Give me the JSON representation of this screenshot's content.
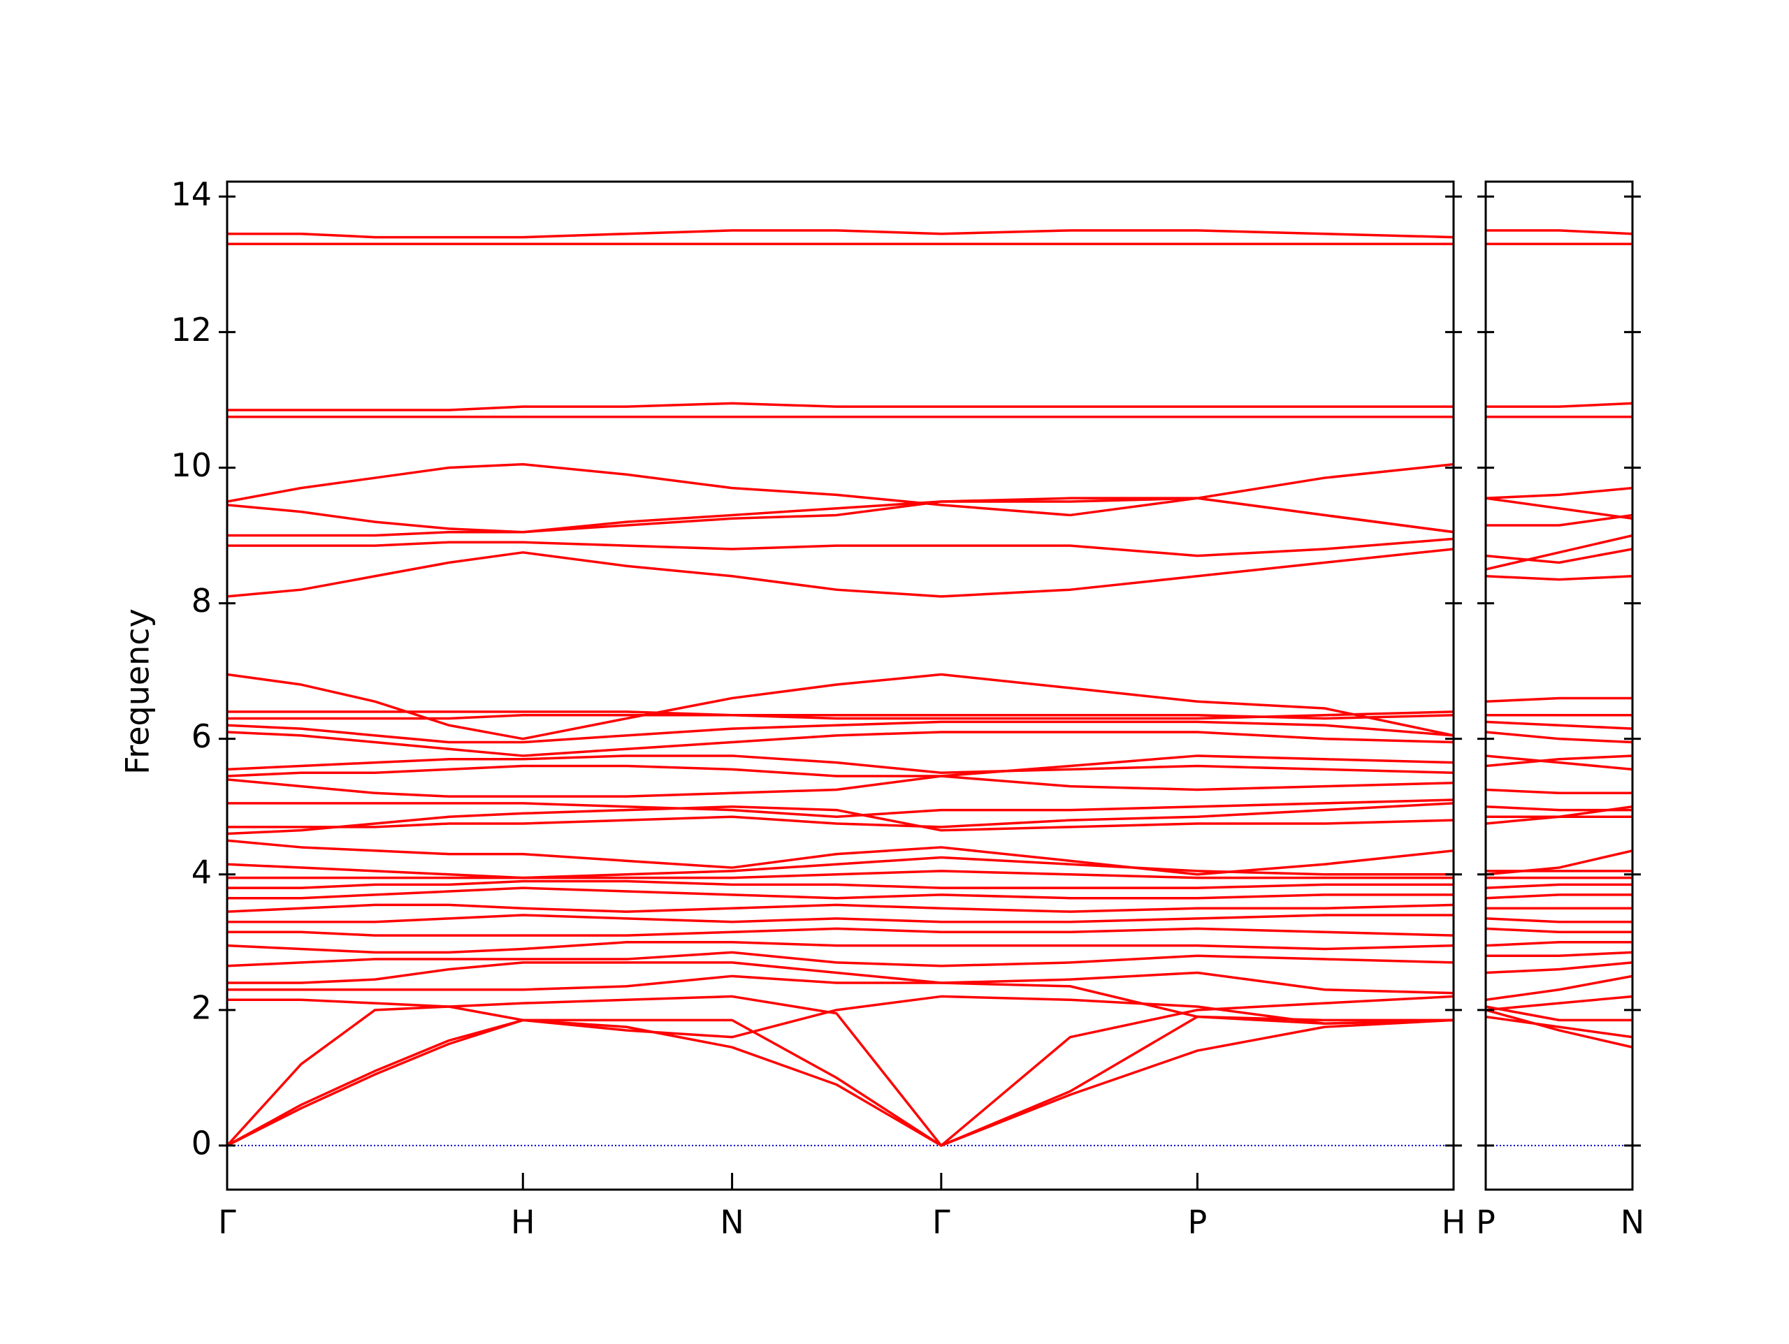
{
  "chart_data": [
    {
      "type": "line",
      "ylabel": "Frequency",
      "color": "#ff0000",
      "x": [
        0,
        0.25,
        0.5,
        0.75,
        1.0,
        1.35,
        1.707,
        2.06,
        2.414,
        2.85,
        3.28,
        3.71,
        4.146
      ],
      "xlim": [
        0,
        4.146
      ],
      "xticks": [
        {
          "value": 0,
          "label": "Γ"
        },
        {
          "value": 1.0,
          "label": "H"
        },
        {
          "value": 1.707,
          "label": "N"
        },
        {
          "value": 2.414,
          "label": "Γ"
        },
        {
          "value": 3.28,
          "label": "P"
        },
        {
          "value": 4.146,
          "label": "H"
        }
      ],
      "ylim": [
        -0.65,
        14.22
      ],
      "yticks": [
        0,
        2,
        4,
        6,
        8,
        10,
        12,
        14
      ],
      "hline": 0,
      "hline_color": "#0000cc",
      "series": [
        {
          "values": [
            0,
            1.2,
            2.0,
            2.05,
            2.1,
            2.15,
            2.2,
            1.95,
            0,
            1.6,
            2.0,
            2.1,
            2.2
          ]
        },
        {
          "values": [
            0,
            0.55,
            1.05,
            1.5,
            1.85,
            1.75,
            1.45,
            0.9,
            0,
            0.75,
            1.4,
            1.75,
            1.85
          ]
        },
        {
          "values": [
            0,
            0.6,
            1.1,
            1.55,
            1.85,
            1.85,
            1.85,
            1.0,
            0,
            0.8,
            1.9,
            1.8,
            1.85
          ]
        },
        {
          "values": [
            2.15,
            2.15,
            2.1,
            2.05,
            1.85,
            1.7,
            1.6,
            2.0,
            2.2,
            2.15,
            2.05,
            1.8,
            1.85
          ]
        },
        {
          "values": [
            2.3,
            2.3,
            2.3,
            2.3,
            2.3,
            2.35,
            2.5,
            2.4,
            2.4,
            2.35,
            1.9,
            1.85,
            1.85
          ]
        },
        {
          "values": [
            2.4,
            2.4,
            2.45,
            2.6,
            2.7,
            2.7,
            2.7,
            2.55,
            2.4,
            2.45,
            2.55,
            2.3,
            2.25
          ]
        },
        {
          "values": [
            2.65,
            2.7,
            2.75,
            2.75,
            2.75,
            2.75,
            2.85,
            2.7,
            2.65,
            2.7,
            2.8,
            2.75,
            2.7
          ]
        },
        {
          "values": [
            2.95,
            2.9,
            2.85,
            2.85,
            2.9,
            3.0,
            3.0,
            2.95,
            2.95,
            2.95,
            2.95,
            2.9,
            2.95
          ]
        },
        {
          "values": [
            3.15,
            3.15,
            3.1,
            3.1,
            3.1,
            3.1,
            3.15,
            3.2,
            3.15,
            3.15,
            3.2,
            3.15,
            3.1
          ]
        },
        {
          "values": [
            3.3,
            3.3,
            3.3,
            3.35,
            3.4,
            3.35,
            3.3,
            3.35,
            3.3,
            3.3,
            3.35,
            3.4,
            3.4
          ]
        },
        {
          "values": [
            3.45,
            3.5,
            3.55,
            3.55,
            3.5,
            3.45,
            3.5,
            3.55,
            3.5,
            3.45,
            3.5,
            3.5,
            3.55
          ]
        },
        {
          "values": [
            3.65,
            3.65,
            3.7,
            3.75,
            3.8,
            3.75,
            3.7,
            3.65,
            3.7,
            3.65,
            3.65,
            3.7,
            3.7
          ]
        },
        {
          "values": [
            3.8,
            3.8,
            3.85,
            3.85,
            3.9,
            3.9,
            3.85,
            3.85,
            3.8,
            3.8,
            3.8,
            3.85,
            3.85
          ]
        },
        {
          "values": [
            3.95,
            3.95,
            3.95,
            3.95,
            3.95,
            3.95,
            3.95,
            4.0,
            4.05,
            4.0,
            3.95,
            3.95,
            3.95
          ]
        },
        {
          "values": [
            4.15,
            4.1,
            4.05,
            4.0,
            3.95,
            4.0,
            4.05,
            4.15,
            4.25,
            4.15,
            4.05,
            4.0,
            4.0
          ]
        },
        {
          "values": [
            4.5,
            4.4,
            4.35,
            4.3,
            4.3,
            4.2,
            4.1,
            4.3,
            4.4,
            4.2,
            4.0,
            4.15,
            4.35
          ]
        },
        {
          "values": [
            4.6,
            4.65,
            4.75,
            4.85,
            4.9,
            4.95,
            5.0,
            4.95,
            4.65,
            4.7,
            4.75,
            4.75,
            4.8
          ]
        },
        {
          "values": [
            4.7,
            4.7,
            4.7,
            4.75,
            4.75,
            4.8,
            4.85,
            4.75,
            4.7,
            4.8,
            4.85,
            4.95,
            5.05
          ]
        },
        {
          "values": [
            5.05,
            5.05,
            5.05,
            5.05,
            5.05,
            5.0,
            4.95,
            4.85,
            4.95,
            4.95,
            5.0,
            5.05,
            5.1
          ]
        },
        {
          "values": [
            5.4,
            5.3,
            5.2,
            5.15,
            5.15,
            5.15,
            5.2,
            5.25,
            5.45,
            5.3,
            5.25,
            5.3,
            5.35
          ]
        },
        {
          "values": [
            5.45,
            5.5,
            5.5,
            5.55,
            5.6,
            5.6,
            5.55,
            5.45,
            5.45,
            5.6,
            5.75,
            5.7,
            5.65
          ]
        },
        {
          "values": [
            5.55,
            5.6,
            5.65,
            5.7,
            5.7,
            5.75,
            5.75,
            5.65,
            5.5,
            5.55,
            5.6,
            5.55,
            5.5
          ]
        },
        {
          "values": [
            6.1,
            6.05,
            5.95,
            5.85,
            5.75,
            5.85,
            5.95,
            6.05,
            6.1,
            6.1,
            6.1,
            6.0,
            5.95
          ]
        },
        {
          "values": [
            6.2,
            6.15,
            6.05,
            5.95,
            5.95,
            6.05,
            6.15,
            6.2,
            6.25,
            6.25,
            6.25,
            6.2,
            6.05
          ]
        },
        {
          "values": [
            6.3,
            6.3,
            6.3,
            6.3,
            6.35,
            6.35,
            6.35,
            6.35,
            6.35,
            6.35,
            6.35,
            6.3,
            6.35
          ]
        },
        {
          "values": [
            6.4,
            6.4,
            6.4,
            6.4,
            6.4,
            6.4,
            6.35,
            6.3,
            6.3,
            6.3,
            6.3,
            6.35,
            6.4
          ]
        },
        {
          "values": [
            6.95,
            6.8,
            6.55,
            6.2,
            6.0,
            6.3,
            6.6,
            6.8,
            6.95,
            6.75,
            6.55,
            6.45,
            6.05
          ]
        },
        {
          "values": [
            8.1,
            8.2,
            8.4,
            8.6,
            8.75,
            8.55,
            8.4,
            8.2,
            8.1,
            8.2,
            8.4,
            8.6,
            8.8
          ]
        },
        {
          "values": [
            8.85,
            8.85,
            8.85,
            8.9,
            8.9,
            8.85,
            8.8,
            8.85,
            8.85,
            8.85,
            8.7,
            8.8,
            8.95
          ]
        },
        {
          "values": [
            9.0,
            9.0,
            9.0,
            9.05,
            9.05,
            9.15,
            9.25,
            9.3,
            9.5,
            9.5,
            9.55,
            9.3,
            9.05
          ]
        },
        {
          "values": [
            9.45,
            9.35,
            9.2,
            9.1,
            9.05,
            9.2,
            9.3,
            9.4,
            9.5,
            9.55,
            9.55,
            9.3,
            9.05
          ]
        },
        {
          "values": [
            9.5,
            9.7,
            9.85,
            10.0,
            10.05,
            9.9,
            9.7,
            9.6,
            9.45,
            9.3,
            9.55,
            9.85,
            10.05
          ]
        },
        {
          "values": [
            10.75,
            10.75,
            10.75,
            10.75,
            10.75,
            10.75,
            10.75,
            10.75,
            10.75,
            10.75,
            10.75,
            10.75,
            10.75
          ]
        },
        {
          "values": [
            10.85,
            10.85,
            10.85,
            10.85,
            10.9,
            10.9,
            10.95,
            10.9,
            10.9,
            10.9,
            10.9,
            10.9,
            10.9
          ]
        },
        {
          "values": [
            13.3,
            13.3,
            13.3,
            13.3,
            13.3,
            13.3,
            13.3,
            13.3,
            13.3,
            13.3,
            13.3,
            13.3,
            13.3
          ]
        },
        {
          "values": [
            13.45,
            13.45,
            13.4,
            13.4,
            13.4,
            13.45,
            13.5,
            13.5,
            13.45,
            13.5,
            13.5,
            13.45,
            13.4
          ]
        }
      ]
    },
    {
      "type": "line",
      "color": "#ff0000",
      "x": [
        0,
        0.25,
        0.5
      ],
      "xlim": [
        0,
        0.5
      ],
      "xticks": [
        {
          "value": 0,
          "label": "P"
        },
        {
          "value": 0.5,
          "label": "N"
        }
      ],
      "ylim": [
        -0.65,
        14.22
      ],
      "yticks": [
        0,
        2,
        4,
        6,
        8,
        10,
        12,
        14
      ],
      "hline": 0,
      "hline_color": "#0000cc",
      "series": [
        {
          "values": [
            2.0,
            1.7,
            1.45
          ]
        },
        {
          "values": [
            1.9,
            1.75,
            1.6
          ]
        },
        {
          "values": [
            2.05,
            1.85,
            1.85
          ]
        },
        {
          "values": [
            2.0,
            2.1,
            2.2
          ]
        },
        {
          "values": [
            2.15,
            2.3,
            2.5
          ]
        },
        {
          "values": [
            2.55,
            2.6,
            2.7
          ]
        },
        {
          "values": [
            2.8,
            2.8,
            2.85
          ]
        },
        {
          "values": [
            2.95,
            3.0,
            3.0
          ]
        },
        {
          "values": [
            3.2,
            3.15,
            3.15
          ]
        },
        {
          "values": [
            3.35,
            3.3,
            3.3
          ]
        },
        {
          "values": [
            3.5,
            3.5,
            3.5
          ]
        },
        {
          "values": [
            3.65,
            3.7,
            3.7
          ]
        },
        {
          "values": [
            3.8,
            3.85,
            3.85
          ]
        },
        {
          "values": [
            3.95,
            3.95,
            3.95
          ]
        },
        {
          "values": [
            4.05,
            4.05,
            4.05
          ]
        },
        {
          "values": [
            4.0,
            4.1,
            4.35
          ]
        },
        {
          "values": [
            4.75,
            4.85,
            5.0
          ]
        },
        {
          "values": [
            4.85,
            4.85,
            4.85
          ]
        },
        {
          "values": [
            5.0,
            4.95,
            4.95
          ]
        },
        {
          "values": [
            5.25,
            5.2,
            5.2
          ]
        },
        {
          "values": [
            5.75,
            5.65,
            5.55
          ]
        },
        {
          "values": [
            5.6,
            5.7,
            5.75
          ]
        },
        {
          "values": [
            6.1,
            6.0,
            5.95
          ]
        },
        {
          "values": [
            6.25,
            6.2,
            6.15
          ]
        },
        {
          "values": [
            6.35,
            6.35,
            6.35
          ]
        },
        {
          "values": [
            6.55,
            6.6,
            6.6
          ]
        },
        {
          "values": [
            8.4,
            8.35,
            8.4
          ]
        },
        {
          "values": [
            8.7,
            8.6,
            8.8
          ]
        },
        {
          "values": [
            8.5,
            8.75,
            9.0
          ]
        },
        {
          "values": [
            9.55,
            9.4,
            9.25
          ]
        },
        {
          "values": [
            9.55,
            9.6,
            9.7
          ]
        },
        {
          "values": [
            9.15,
            9.15,
            9.3
          ]
        },
        {
          "values": [
            10.75,
            10.75,
            10.75
          ]
        },
        {
          "values": [
            10.9,
            10.9,
            10.95
          ]
        },
        {
          "values": [
            13.3,
            13.3,
            13.3
          ]
        },
        {
          "values": [
            13.5,
            13.5,
            13.45
          ]
        }
      ]
    }
  ]
}
